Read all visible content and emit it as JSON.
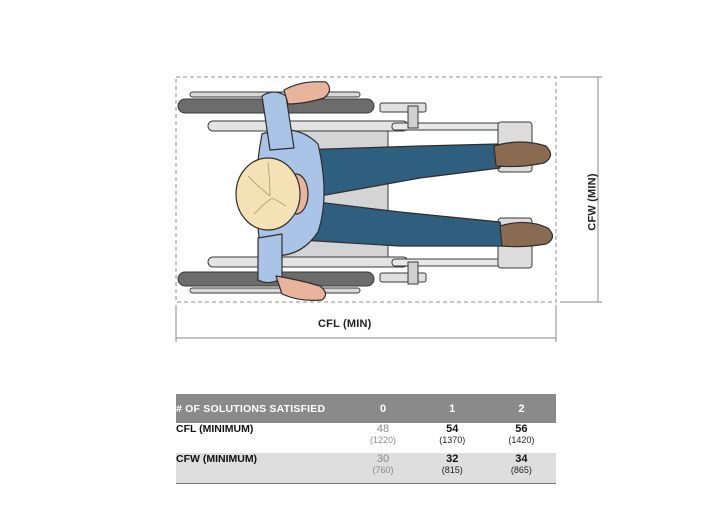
{
  "dimensions": {
    "length_label": "CFL (MIN)",
    "width_label": "CFW (MIN)"
  },
  "table": {
    "header": [
      "# OF SOLUTIONS SATISFIED",
      "0",
      "1",
      "2"
    ],
    "rows": [
      {
        "label": "CFL (MINIMUM)",
        "values": [
          {
            "in": "48",
            "mm": "(1220)"
          },
          {
            "in": "54",
            "mm": "(1370)"
          },
          {
            "in": "56",
            "mm": "(1420)"
          }
        ]
      },
      {
        "label": "CFW (MINIMUM)",
        "values": [
          {
            "in": "30",
            "mm": "(760)"
          },
          {
            "in": "32",
            "mm": "(815)"
          },
          {
            "in": "34",
            "mm": "(865)"
          }
        ]
      }
    ]
  },
  "colors": {
    "shirt": "#a9c4e6",
    "jeans": "#2f5f7f",
    "skin": "#e8b49c",
    "hair": "#f4e2b4",
    "shoe": "#8a6a50",
    "header_bg": "#8a8a8a",
    "alt_row_bg": "#dedede"
  }
}
